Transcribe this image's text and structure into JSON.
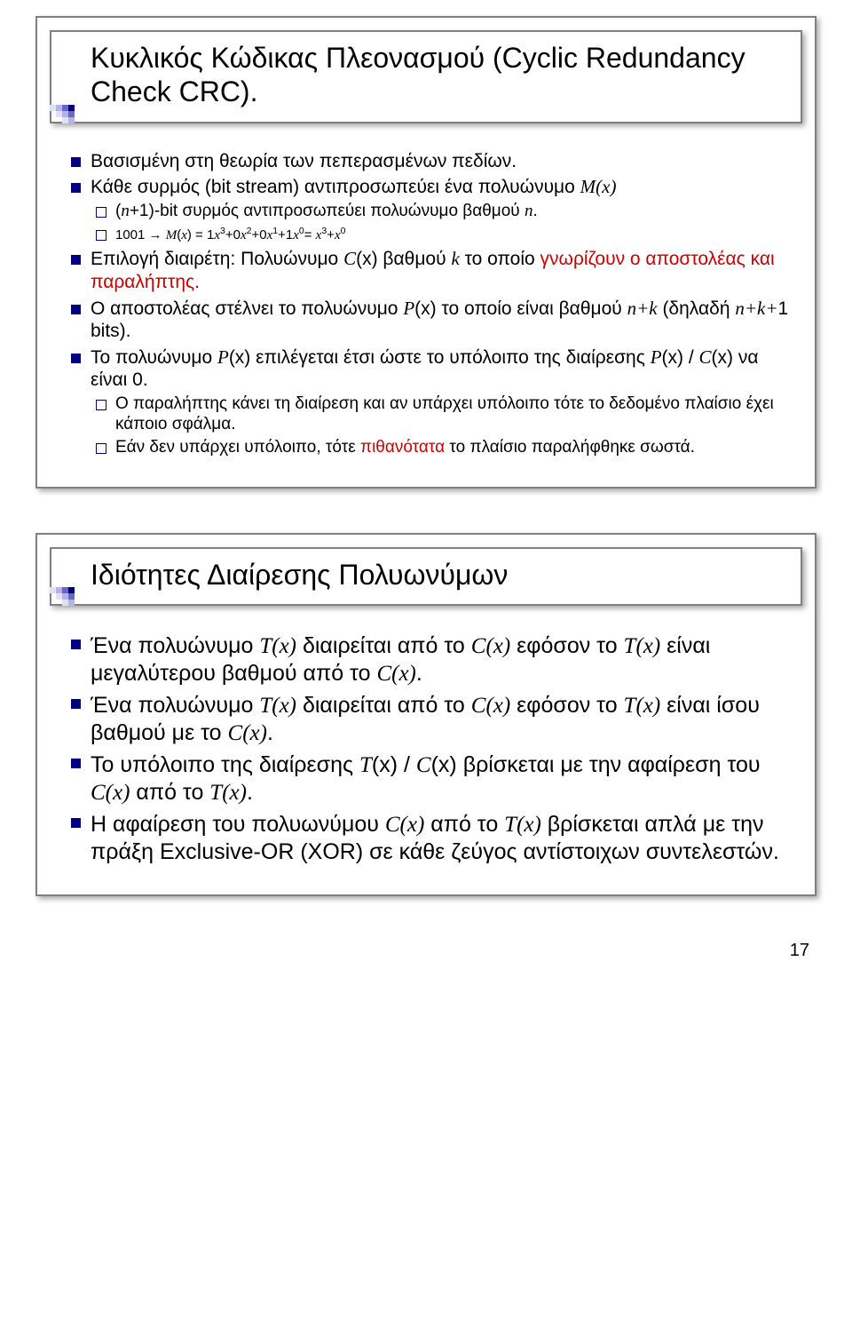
{
  "decor_colors": {
    "dark": "#000080",
    "mid": "#6666cc",
    "light": "#b3b3e6",
    "pale": "#e0e0f5"
  },
  "slide1": {
    "title": "Κυκλικός Κώδικας Πλεονασμού (Cyclic Redundancy Check CRC).",
    "b1": "Βασισμένη στη θεωρία των πεπερασμένων πεδίων.",
    "b2_a": "Κάθε συρμός (bit stream) αντιπροσωπεύει ένα πολυώνυμο ",
    "b2_mx": "M(x)",
    "b2_s1_a": "(",
    "b2_s1_n": "n",
    "b2_s1_b": "+1)-bit συρμός αντιπροσωπεύει πολυώνυμο βαθμού ",
    "b2_s1_n2": "n",
    "b2_s1_c": ".",
    "b2_s2": "1001 → M(x) = 1x³+0x²+0x¹+1x⁰= x³+x⁰",
    "b3_a": "Επιλογή διαιρέτη: Πολυώνυμο ",
    "b3_cx": "C",
    "b3_x": "(x)",
    "b3_b": " βαθμού ",
    "b3_k": "k",
    "b3_c": " το οποίο ",
    "b3_red": "γνωρίζουν ο αποστολέας και παραλήπτης.",
    "b4_a": "Ο αποστολέας στέλνει το πολυώνυμο ",
    "b4_px": "P",
    "b4_x": "(x)",
    "b4_b": " το οποίο είναι βαθμού ",
    "b4_nk": "n+k",
    "b4_c": " (δηλαδή ",
    "b4_nk1": "n+k+",
    "b4_d": "1 bits).",
    "b5_a": "Το πολυώνυμο ",
    "b5_px": "P",
    "b5_x1": "(x)",
    "b5_b": " επιλέγεται έτσι ώστε το υπόλοιπο της διαίρεσης ",
    "b5_px2": "P",
    "b5_x2": "(x)",
    "b5_slash": " / ",
    "b5_cx": "C",
    "b5_x3": "(x)",
    "b5_c": " να είναι 0.",
    "b5_s1": "Ο παραλήπτης κάνει τη διαίρεση και αν υπάρχει υπόλοιπο τότε το δεδομένο πλαίσιο έχει κάποιο σφάλμα.",
    "b5_s2_a": "Εάν δεν υπάρχει υπόλοιπο, τότε ",
    "b5_s2_red": "πιθανότατα",
    "b5_s2_b": " το πλαίσιο παραλήφθηκε σωστά."
  },
  "slide2": {
    "title": "Ιδιότητες Διαίρεσης Πολυωνύμων",
    "b1_a": "Ένα πολυώνυμο ",
    "b1_tx": "T(x)",
    "b1_b": " διαιρείται από το ",
    "b1_cx": "C(x)",
    "b1_c": " εφόσον το ",
    "b1_tx2": "T(x)",
    "b1_d": " είναι μεγαλύτερου βαθμού από το ",
    "b1_cx2": "C(x)",
    "b1_e": ".",
    "b2_a": "Ένα πολυώνυμο ",
    "b2_tx": "T(x)",
    "b2_b": " διαιρείται από το ",
    "b2_cx": "C(x)",
    "b2_c": " εφόσον το ",
    "b2_tx2": "T(x)",
    "b2_d": " είναι ίσου βαθμού με το ",
    "b2_cx2": "C(x)",
    "b2_e": ".",
    "b3_a": "Το υπόλοιπο της διαίρεσης ",
    "b3_tx": "T",
    "b3_x1": "(x)",
    "b3_slash": " / ",
    "b3_cx": "C",
    "b3_x2": "(x)",
    "b3_b": " βρίσκεται με την αφαίρεση του ",
    "b3_cx2": "C(x)",
    "b3_c": " από το ",
    "b3_tx2": "T(x)",
    "b3_d": ".",
    "b4_a": "Η αφαίρεση του πολυωνύμου ",
    "b4_cx": "C(x)",
    "b4_b": " από το ",
    "b4_tx": "T(x)",
    "b4_c": " βρίσκεται απλά με την πράξη Exclusive-OR (XOR) σε κάθε ζεύγος αντίστοιχων συντελεστών."
  },
  "page_number": "17"
}
